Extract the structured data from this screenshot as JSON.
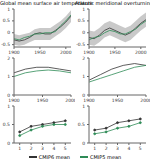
{
  "chart_data": [
    {
      "type": "line",
      "title": "Global mean surface air temperature",
      "x": [
        1900,
        1910,
        1920,
        1930,
        1940,
        1950,
        1960,
        1970,
        1980,
        1990,
        2000,
        2010
      ],
      "xlim": [
        1900,
        2010
      ],
      "xticks": [
        1900,
        1950,
        2000
      ],
      "ylim": [
        -0.6,
        1.0
      ],
      "yticks": [
        -0.5,
        0,
        0.5,
        1
      ],
      "series": [
        {
          "name": "CMIP6 mean",
          "color": "#333333",
          "values": [
            -0.3,
            -0.35,
            -0.3,
            -0.2,
            -0.05,
            0,
            -0.05,
            -0.05,
            0.1,
            0.25,
            0.45,
            0.7
          ],
          "range": [
            [
              -0.5,
              -0.05
            ],
            [
              -0.55,
              -0.1
            ],
            [
              -0.5,
              -0.05
            ],
            [
              -0.4,
              0.0
            ],
            [
              -0.3,
              0.15
            ],
            [
              -0.3,
              0.2
            ],
            [
              -0.3,
              0.2
            ],
            [
              -0.3,
              0.2
            ],
            [
              -0.15,
              0.35
            ],
            [
              0.0,
              0.5
            ],
            [
              0.2,
              0.7
            ],
            [
              0.45,
              0.95
            ]
          ]
        },
        {
          "name": "CMIP5 mean",
          "color": "#2e8b57",
          "values": [
            -0.25,
            -0.3,
            -0.2,
            -0.15,
            -0.05,
            -0.05,
            0,
            0,
            0.05,
            0.3,
            0.5,
            0.75
          ]
        }
      ]
    },
    {
      "type": "line",
      "title": "Atlantic meridional overturning north",
      "x": [
        1900,
        1910,
        1920,
        1930,
        1940,
        1950,
        1960,
        1970,
        1980,
        1990,
        2000,
        2010
      ],
      "xlim": [
        1900,
        2010
      ],
      "xticks": [
        1900,
        1950,
        2000
      ],
      "ylim": [
        -0.6,
        1.0
      ],
      "yticks": [
        -0.5,
        0,
        0.5,
        1
      ],
      "series": [
        {
          "name": "CMIP6 mean",
          "color": "#333333",
          "values": [
            -0.2,
            -0.25,
            -0.1,
            0.1,
            0.2,
            0.1,
            0.0,
            -0.1,
            0.0,
            0.2,
            0.4,
            0.55
          ],
          "range": [
            [
              -0.5,
              0.1
            ],
            [
              -0.55,
              0.05
            ],
            [
              -0.4,
              0.2
            ],
            [
              -0.2,
              0.4
            ],
            [
              -0.1,
              0.5
            ],
            [
              -0.2,
              0.4
            ],
            [
              -0.3,
              0.3
            ],
            [
              -0.4,
              0.2
            ],
            [
              -0.3,
              0.3
            ],
            [
              -0.1,
              0.5
            ],
            [
              0.1,
              0.7
            ],
            [
              0.25,
              0.85
            ]
          ]
        },
        {
          "name": "CMIP5 mean",
          "color": "#2e8b57",
          "values": [
            -0.3,
            -0.2,
            -0.15,
            0.0,
            0.1,
            0.05,
            -0.05,
            -0.05,
            0.05,
            0.15,
            0.35,
            0.5
          ]
        }
      ]
    },
    {
      "type": "line",
      "x": [
        1900,
        1920,
        1940,
        1960,
        1980,
        2000
      ],
      "xlim": [
        1900,
        2000
      ],
      "xticks": [
        1900,
        1950,
        2000
      ],
      "ylim": [
        0,
        2
      ],
      "yticks": [
        0,
        1,
        2
      ],
      "series": [
        {
          "name": "CMIP6 mean",
          "color": "#333333",
          "values": [
            1.2,
            1.4,
            1.5,
            1.5,
            1.4,
            1.3
          ]
        },
        {
          "name": "CMIP5 mean",
          "color": "#2e8b57",
          "values": [
            1.0,
            1.2,
            1.3,
            1.35,
            1.3,
            1.2
          ]
        }
      ]
    },
    {
      "type": "line",
      "x": [
        1900,
        1920,
        1940,
        1960,
        1980,
        2000
      ],
      "xlim": [
        1900,
        2000
      ],
      "xticks": [
        1900,
        1950,
        2000
      ],
      "ylim": [
        0,
        2
      ],
      "yticks": [
        0,
        1,
        2
      ],
      "series": [
        {
          "name": "CMIP6 mean",
          "color": "#333333",
          "values": [
            0.8,
            1.1,
            1.4,
            1.6,
            1.7,
            1.6
          ]
        },
        {
          "name": "CMIP5 mean",
          "color": "#2e8b57",
          "values": [
            0.7,
            0.9,
            1.1,
            1.3,
            1.5,
            1.6
          ]
        }
      ]
    },
    {
      "type": "line",
      "marker": "circle",
      "legend": "bottom",
      "x": [
        1,
        2,
        3,
        4,
        5
      ],
      "xlim": [
        0.5,
        5.5
      ],
      "xticks": [
        1,
        2,
        3,
        4,
        5
      ],
      "ylim": [
        0,
        1
      ],
      "yticks": [
        0,
        0.5,
        1
      ],
      "series": [
        {
          "name": "CMIP6 mean",
          "color": "#333333",
          "values": [
            0.3,
            0.45,
            0.5,
            0.55,
            0.6
          ]
        },
        {
          "name": "CMIP5 mean",
          "color": "#2e8b57",
          "values": [
            0.2,
            0.35,
            0.45,
            0.5,
            0.5
          ]
        }
      ]
    },
    {
      "type": "line",
      "marker": "circle",
      "x": [
        1,
        2,
        3,
        4,
        5
      ],
      "xlim": [
        0.5,
        5.5
      ],
      "xticks": [
        1,
        2,
        3,
        4,
        5
      ],
      "ylim": [
        0,
        1
      ],
      "yticks": [
        0,
        0.5,
        1
      ],
      "series": [
        {
          "name": "CMIP6 mean",
          "color": "#333333",
          "values": [
            0.35,
            0.4,
            0.55,
            0.6,
            0.65
          ]
        },
        {
          "name": "CMIP5 mean",
          "color": "#2e8b57",
          "values": [
            0.25,
            0.3,
            0.4,
            0.45,
            0.55
          ]
        }
      ]
    }
  ]
}
